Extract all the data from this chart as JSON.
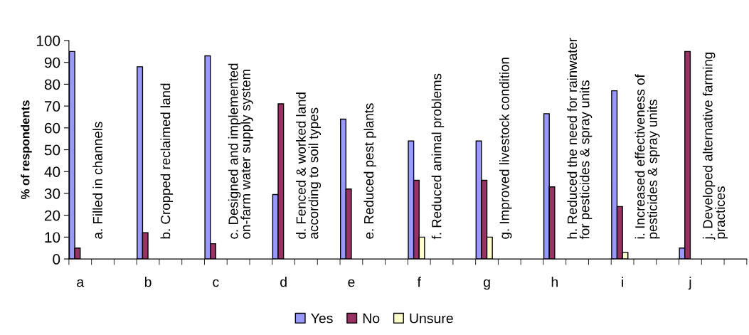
{
  "chart_data": {
    "type": "bar",
    "ylabel": "% of respondents",
    "categories": [
      "a",
      null,
      null,
      "b",
      null,
      null,
      "c",
      null,
      null,
      "d",
      null,
      null,
      "e",
      null,
      null,
      "f",
      null,
      null,
      "g",
      null,
      null,
      "h",
      null,
      null,
      "i",
      null,
      null,
      "j",
      null,
      null
    ],
    "series": [
      {
        "name": "Yes",
        "color": "#9999ff",
        "values": [
          95,
          null,
          null,
          88,
          null,
          null,
          93,
          null,
          null,
          29.5,
          null,
          null,
          64,
          null,
          null,
          54,
          null,
          null,
          54,
          null,
          null,
          66.5,
          null,
          null,
          77,
          null,
          null,
          5,
          null,
          null
        ]
      },
      {
        "name": "No",
        "color": "#993366",
        "values": [
          5,
          null,
          null,
          12,
          null,
          null,
          7,
          null,
          null,
          71,
          null,
          null,
          32,
          null,
          null,
          36,
          null,
          null,
          36,
          null,
          null,
          33,
          null,
          null,
          24,
          null,
          null,
          95,
          null,
          null
        ]
      },
      {
        "name": "Unsure",
        "color": "#ffffcc",
        "values": [
          null,
          null,
          null,
          null,
          null,
          null,
          null,
          null,
          null,
          null,
          null,
          null,
          null,
          null,
          null,
          10,
          null,
          null,
          10,
          null,
          null,
          null,
          null,
          null,
          3,
          null,
          null,
          null,
          null,
          null
        ]
      }
    ],
    "annotations": [
      "a. Filled in channels",
      "b. Cropped reclaimed land",
      "c. Designed and implemented\non-farm water supply system",
      "d. Fenced & worked land\naccording to soil types",
      "e. Reduced pest plants",
      "f. Reduced animal problems",
      "g. Improved livestock condition",
      "h. Reduced the need for rainwater\nfor pesticides & spray units",
      "i. Increased effectiveness of\npesticides & spray units",
      "j. Developed alternative farming\npractices"
    ],
    "ylim": [
      0,
      100
    ],
    "yticks": [
      0,
      10,
      20,
      30,
      40,
      50,
      60,
      70,
      80,
      90,
      100
    ],
    "legend": "bottom",
    "grid": false
  }
}
